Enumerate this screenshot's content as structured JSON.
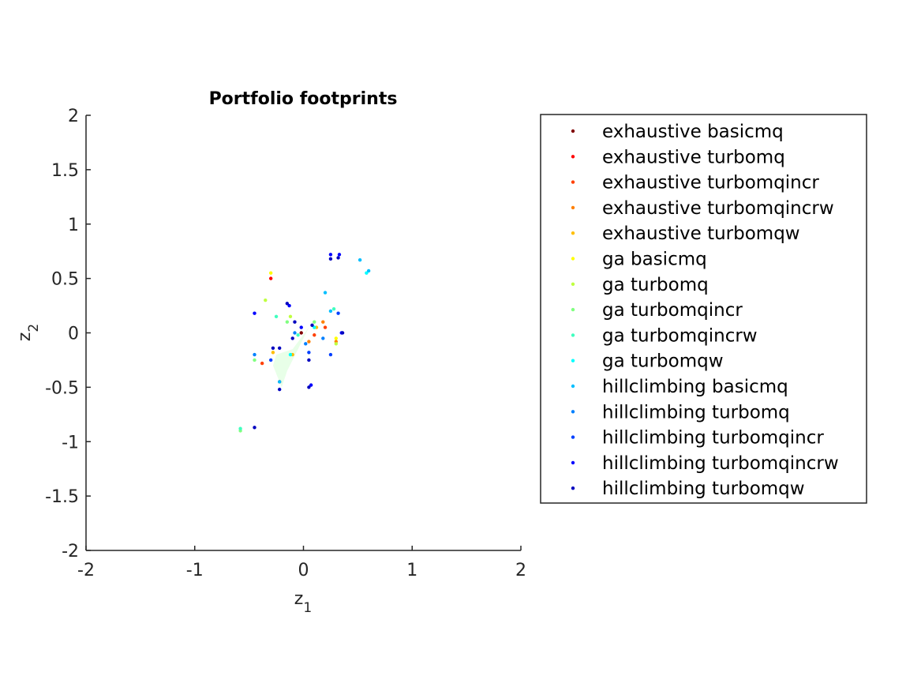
{
  "chart_data": {
    "type": "scatter",
    "title": "Portfolio footprints",
    "xlabel": "z",
    "xlabel_sub": "1",
    "ylabel": "z",
    "ylabel_sub": "2",
    "xlim": [
      -2,
      2
    ],
    "ylim": [
      -2,
      2
    ],
    "xticks": [
      -2,
      -1,
      0,
      1,
      2
    ],
    "yticks": [
      -2,
      -1.5,
      -1,
      -0.5,
      0,
      0.5,
      1,
      1.5,
      2
    ],
    "xtick_labels": [
      "-2",
      "-1",
      "0",
      "1",
      "2"
    ],
    "ytick_labels": [
      "-2",
      "-1.5",
      "-1",
      "-0.5",
      "0",
      "0.5",
      "1",
      "1.5",
      "2"
    ],
    "grid": false,
    "legend_position": "outside-right",
    "footprint_region": {
      "color": "#ccffcc",
      "points": [
        [
          -0.25,
          -0.2
        ],
        [
          -0.1,
          -0.15
        ],
        [
          0.05,
          0.05
        ],
        [
          -0.15,
          -0.35
        ],
        [
          -0.2,
          -0.5
        ],
        [
          -0.28,
          -0.3
        ]
      ]
    },
    "series": [
      {
        "name": "exhaustive basicmq",
        "color": "#800000",
        "points": [
          [
            -0.02,
            0.0
          ]
        ]
      },
      {
        "name": "exhaustive turbomq",
        "color": "#ff0000",
        "points": [
          [
            -0.3,
            0.5
          ],
          [
            -0.22,
            -0.45
          ]
        ]
      },
      {
        "name": "exhaustive turbomqincr",
        "color": "#ff4000",
        "points": [
          [
            -0.38,
            -0.28
          ],
          [
            0.1,
            -0.02
          ],
          [
            0.2,
            0.05
          ]
        ]
      },
      {
        "name": "exhaustive turbomqincrw",
        "color": "#ff8000",
        "points": [
          [
            0.05,
            -0.08
          ],
          [
            0.18,
            0.1
          ],
          [
            0.3,
            -0.08
          ]
        ]
      },
      {
        "name": "exhaustive turbomqw",
        "color": "#ffbf00",
        "points": [
          [
            -0.28,
            -0.18
          ],
          [
            0.12,
            0.05
          ],
          [
            -0.1,
            -0.2
          ]
        ]
      },
      {
        "name": "ga basicmq",
        "color": "#ffff00",
        "points": [
          [
            -0.3,
            0.55
          ],
          [
            0.3,
            -0.05
          ]
        ]
      },
      {
        "name": "ga turbomq",
        "color": "#bfff40",
        "points": [
          [
            -0.35,
            0.3
          ],
          [
            -0.12,
            0.15
          ],
          [
            0.3,
            -0.1
          ]
        ]
      },
      {
        "name": "ga turbomqincr",
        "color": "#80ff80",
        "points": [
          [
            -0.58,
            -0.9
          ],
          [
            -0.45,
            -0.25
          ],
          [
            -0.15,
            0.1
          ],
          [
            0.1,
            0.1
          ]
        ]
      },
      {
        "name": "ga turbomqincrw",
        "color": "#40ffbf",
        "points": [
          [
            -0.58,
            -0.88
          ],
          [
            -0.25,
            0.15
          ],
          [
            -0.05,
            -0.02
          ],
          [
            0.28,
            0.22
          ]
        ]
      },
      {
        "name": "ga turbomqw",
        "color": "#00ffff",
        "points": [
          [
            0.58,
            0.55
          ],
          [
            -0.12,
            -0.2
          ],
          [
            0.1,
            0.05
          ]
        ]
      },
      {
        "name": "hillclimbing basicmq",
        "color": "#00bfff",
        "points": [
          [
            0.2,
            0.37
          ],
          [
            0.52,
            0.67
          ],
          [
            0.6,
            0.57
          ],
          [
            -0.22,
            -0.45
          ],
          [
            0.25,
            0.2
          ]
        ]
      },
      {
        "name": "hillclimbing turbomq",
        "color": "#0080ff",
        "points": [
          [
            -0.45,
            -0.2
          ],
          [
            0.18,
            -0.05
          ],
          [
            0.02,
            -0.1
          ],
          [
            -0.08,
            0.0
          ]
        ]
      },
      {
        "name": "hillclimbing turbomqincr",
        "color": "#0040ff",
        "points": [
          [
            0.25,
            -0.2
          ],
          [
            -0.3,
            -0.25
          ],
          [
            0.05,
            -0.18
          ],
          [
            0.32,
            0.18
          ]
        ]
      },
      {
        "name": "hillclimbing turbomqincrw",
        "color": "#0000ff",
        "points": [
          [
            0.25,
            0.72
          ],
          [
            0.33,
            0.72
          ],
          [
            -0.45,
            0.18
          ],
          [
            -0.13,
            0.25
          ],
          [
            -0.02,
            0.05
          ],
          [
            0.07,
            -0.48
          ],
          [
            0.35,
            0.0
          ]
        ]
      },
      {
        "name": "hillclimbing turbomqw",
        "color": "#0000bf",
        "points": [
          [
            0.25,
            0.68
          ],
          [
            0.32,
            0.69
          ],
          [
            -0.45,
            -0.87
          ],
          [
            -0.22,
            -0.52
          ],
          [
            -0.1,
            -0.05
          ],
          [
            0.05,
            -0.25
          ],
          [
            -0.28,
            -0.14
          ],
          [
            -0.15,
            0.27
          ],
          [
            0.08,
            0.07
          ],
          [
            0.36,
            -0.0
          ],
          [
            -0.08,
            0.1
          ],
          [
            0.05,
            -0.5
          ],
          [
            -0.22,
            -0.14
          ]
        ]
      }
    ]
  }
}
